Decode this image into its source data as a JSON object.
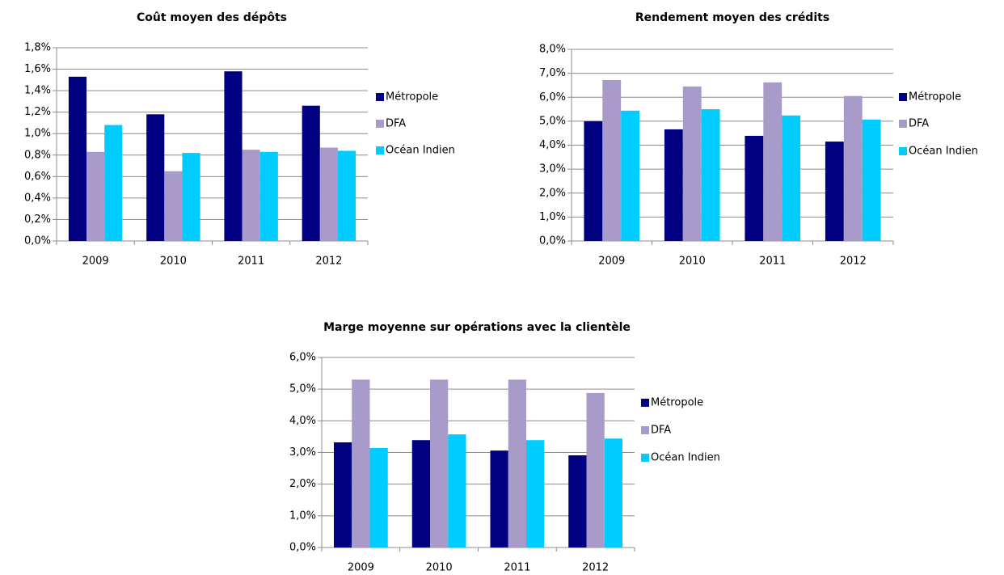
{
  "chart_data": [
    {
      "type": "bar",
      "title": "Coût moyen des dépôts",
      "categories": [
        "2009",
        "2010",
        "2011",
        "2012"
      ],
      "series": [
        {
          "name": "Métropole",
          "color": "#000080",
          "values": [
            1.53,
            1.18,
            1.58,
            1.26
          ]
        },
        {
          "name": "DFA",
          "color": "#a99bc9",
          "values": [
            0.83,
            0.65,
            0.85,
            0.87
          ]
        },
        {
          "name": "Océan Indien",
          "color": "#00ccff",
          "values": [
            1.08,
            0.82,
            0.83,
            0.84
          ]
        }
      ],
      "ylim": [
        0,
        1.8
      ],
      "yticks": [
        {
          "value": 0,
          "label": "0,0%"
        },
        {
          "value": 0.2,
          "label": "0,2%"
        },
        {
          "value": 0.4,
          "label": "0,4%"
        },
        {
          "value": 0.6,
          "label": "0,6%"
        },
        {
          "value": 0.8,
          "label": "0,8%"
        },
        {
          "value": 1.0,
          "label": "1,0%"
        },
        {
          "value": 1.2,
          "label": "1,2%"
        },
        {
          "value": 1.4,
          "label": "1,4%"
        },
        {
          "value": 1.6,
          "label": "1,6%"
        },
        {
          "value": 1.8,
          "label": "1,8%"
        }
      ],
      "grid": true,
      "legend": "right"
    },
    {
      "type": "bar",
      "title": "Rendement moyen des crédits",
      "categories": [
        "2009",
        "2010",
        "2011",
        "2012"
      ],
      "series": [
        {
          "name": "Métropole",
          "color": "#000080",
          "values": [
            5.0,
            4.66,
            4.39,
            4.15
          ]
        },
        {
          "name": "DFA",
          "color": "#a99bc9",
          "values": [
            6.72,
            6.45,
            6.62,
            6.05
          ]
        },
        {
          "name": "Océan Indien",
          "color": "#00ccff",
          "values": [
            5.44,
            5.5,
            5.24,
            5.07
          ]
        }
      ],
      "ylim": [
        0,
        8
      ],
      "yticks": [
        {
          "value": 0,
          "label": "0,0%"
        },
        {
          "value": 1,
          "label": "1,0%"
        },
        {
          "value": 2,
          "label": "2,0%"
        },
        {
          "value": 3,
          "label": "3,0%"
        },
        {
          "value": 4,
          "label": "4,0%"
        },
        {
          "value": 5,
          "label": "5,0%"
        },
        {
          "value": 6,
          "label": "6,0%"
        },
        {
          "value": 7,
          "label": "7,0%"
        },
        {
          "value": 8,
          "label": "8,0%"
        }
      ],
      "grid": true,
      "legend": "right"
    },
    {
      "type": "bar",
      "title": "Marge moyenne sur opérations avec la clientèle",
      "categories": [
        "2009",
        "2010",
        "2011",
        "2012"
      ],
      "series": [
        {
          "name": "Métropole",
          "color": "#000080",
          "values": [
            3.32,
            3.39,
            3.06,
            2.91
          ]
        },
        {
          "name": "DFA",
          "color": "#a99bc9",
          "values": [
            5.3,
            5.3,
            5.3,
            4.88
          ]
        },
        {
          "name": "Océan Indien",
          "color": "#00ccff",
          "values": [
            3.14,
            3.57,
            3.39,
            3.44
          ]
        }
      ],
      "ylim": [
        0,
        6
      ],
      "yticks": [
        {
          "value": 0,
          "label": "0,0%"
        },
        {
          "value": 1,
          "label": "1,0%"
        },
        {
          "value": 2,
          "label": "2,0%"
        },
        {
          "value": 3,
          "label": "3,0%"
        },
        {
          "value": 4,
          "label": "4,0%"
        },
        {
          "value": 5,
          "label": "5,0%"
        },
        {
          "value": 6,
          "label": "6,0%"
        }
      ],
      "grid": true,
      "legend": "right"
    }
  ]
}
